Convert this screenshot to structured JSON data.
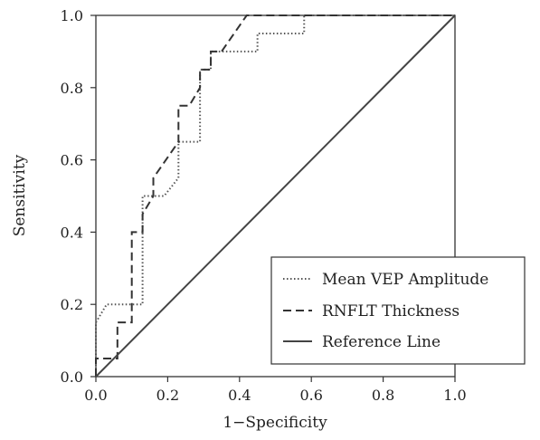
{
  "chart_data": {
    "type": "line",
    "title": "",
    "xlabel": "1−Specificity",
    "ylabel": "Sensitivity",
    "xlim": [
      0,
      1
    ],
    "ylim": [
      0,
      1
    ],
    "xticks": [
      "0.0",
      "0.2",
      "0.4",
      "0.6",
      "0.8",
      "1.0"
    ],
    "yticks": [
      "0.0",
      "0.2",
      "0.4",
      "0.6",
      "0.8",
      "1.0"
    ],
    "grid": false,
    "legend_position": "bottom-right",
    "series": [
      {
        "name": "Mean VEP Amplitude",
        "style": "dotted",
        "color": "#555555",
        "x": [
          0,
          0,
          0.03,
          0.03,
          0.1,
          0.1,
          0.13,
          0.13,
          0.16,
          0.16,
          0.19,
          0.19,
          0.23,
          0.23,
          0.29,
          0.29,
          0.32,
          0.32,
          0.45,
          0.45,
          0.58,
          0.58,
          1.0
        ],
        "y": [
          0,
          0.15,
          0.2,
          0.2,
          0.2,
          0.2,
          0.2,
          0.5,
          0.5,
          0.5,
          0.5,
          0.5,
          0.55,
          0.65,
          0.65,
          0.85,
          0.85,
          0.9,
          0.9,
          0.95,
          0.95,
          1.0,
          1.0
        ]
      },
      {
        "name": "RNFLT Thickness",
        "style": "dashed",
        "color": "#333333",
        "x": [
          0,
          0,
          0.06,
          0.06,
          0.1,
          0.1,
          0.13,
          0.13,
          0.16,
          0.16,
          0.23,
          0.23,
          0.26,
          0.26,
          0.29,
          0.29,
          0.32,
          0.32,
          0.35,
          0.42,
          1.0
        ],
        "y": [
          0,
          0.05,
          0.05,
          0.15,
          0.15,
          0.4,
          0.4,
          0.45,
          0.5,
          0.55,
          0.65,
          0.75,
          0.75,
          0.75,
          0.8,
          0.85,
          0.85,
          0.9,
          0.9,
          1.0,
          1.0
        ]
      },
      {
        "name": "Reference Line",
        "style": "solid",
        "color": "#444444",
        "x": [
          0,
          1
        ],
        "y": [
          0,
          1
        ]
      }
    ]
  }
}
